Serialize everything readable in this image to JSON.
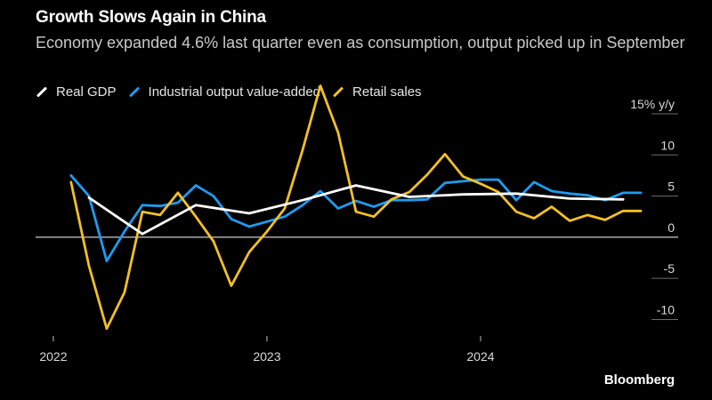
{
  "title": "Growth Slows Again in China",
  "subtitle": "Economy expanded 4.6% last quarter even as consumption, output picked up in September",
  "source": "Bloomberg",
  "legend": [
    {
      "name": "Real GDP",
      "color": "#ffffff"
    },
    {
      "name": "Industrial output value-added",
      "color": "#1e9bf0"
    },
    {
      "name": "Retail sales",
      "color": "#f2bf26"
    }
  ],
  "chart_data": {
    "type": "line",
    "ylabel": "% y/y",
    "ylim": [
      -12,
      15
    ],
    "xlim": [
      2021.917,
      2024.75
    ],
    "y_ticks": [
      {
        "value": 15,
        "label": "15% y/y"
      },
      {
        "value": 10,
        "label": "10"
      },
      {
        "value": 5,
        "label": "5"
      },
      {
        "value": 0,
        "label": "0"
      },
      {
        "value": -5,
        "label": "-5"
      },
      {
        "value": -10,
        "label": "-10"
      }
    ],
    "x_ticks": [
      {
        "value": 2022.0,
        "label": "2022"
      },
      {
        "value": 2023.0,
        "label": "2023"
      },
      {
        "value": 2024.0,
        "label": "2024"
      }
    ],
    "series": [
      {
        "name": "Real GDP",
        "color": "#ffffff",
        "x": [
          2022.167,
          2022.417,
          2022.667,
          2022.917,
          2023.167,
          2023.417,
          2023.667,
          2023.917,
          2024.167,
          2024.417,
          2024.667
        ],
        "values": [
          4.8,
          0.4,
          3.9,
          2.9,
          4.5,
          6.3,
          4.9,
          5.2,
          5.3,
          4.7,
          4.6
        ]
      },
      {
        "name": "Industrial output value-added",
        "color": "#1e9bf0",
        "x": [
          2022.083,
          2022.167,
          2022.25,
          2022.333,
          2022.417,
          2022.5,
          2022.583,
          2022.667,
          2022.75,
          2022.833,
          2022.917,
          2023.0,
          2023.083,
          2023.167,
          2023.25,
          2023.333,
          2023.417,
          2023.5,
          2023.583,
          2023.667,
          2023.75,
          2023.833,
          2023.917,
          2024.0,
          2024.083,
          2024.167,
          2024.25,
          2024.333,
          2024.417,
          2024.5,
          2024.583,
          2024.667,
          2024.75
        ],
        "values": [
          7.5,
          5.0,
          -2.9,
          0.7,
          3.9,
          3.8,
          4.2,
          6.3,
          5.0,
          2.2,
          1.3,
          1.9,
          2.5,
          3.9,
          5.6,
          3.5,
          4.4,
          3.7,
          4.5,
          4.5,
          4.6,
          6.6,
          6.8,
          7.0,
          7.0,
          4.5,
          6.7,
          5.6,
          5.3,
          5.1,
          4.5,
          5.4,
          5.4
        ]
      },
      {
        "name": "Retail sales",
        "color": "#f2bf26",
        "x": [
          2022.083,
          2022.167,
          2022.25,
          2022.333,
          2022.417,
          2022.5,
          2022.583,
          2022.667,
          2022.75,
          2022.833,
          2022.917,
          2023.0,
          2023.083,
          2023.167,
          2023.25,
          2023.333,
          2023.417,
          2023.5,
          2023.583,
          2023.667,
          2023.75,
          2023.833,
          2023.917,
          2024.0,
          2024.083,
          2024.167,
          2024.25,
          2024.333,
          2024.417,
          2024.5,
          2024.583,
          2024.667,
          2024.75
        ],
        "values": [
          6.7,
          -3.5,
          -11.1,
          -6.7,
          3.1,
          2.7,
          5.4,
          2.5,
          -0.5,
          -5.9,
          -1.8,
          0.7,
          3.5,
          10.6,
          18.4,
          12.7,
          3.1,
          2.5,
          4.6,
          5.5,
          7.6,
          10.1,
          7.4,
          6.5,
          5.5,
          3.1,
          2.3,
          3.7,
          2.0,
          2.7,
          2.1,
          3.2,
          3.2
        ]
      }
    ]
  }
}
